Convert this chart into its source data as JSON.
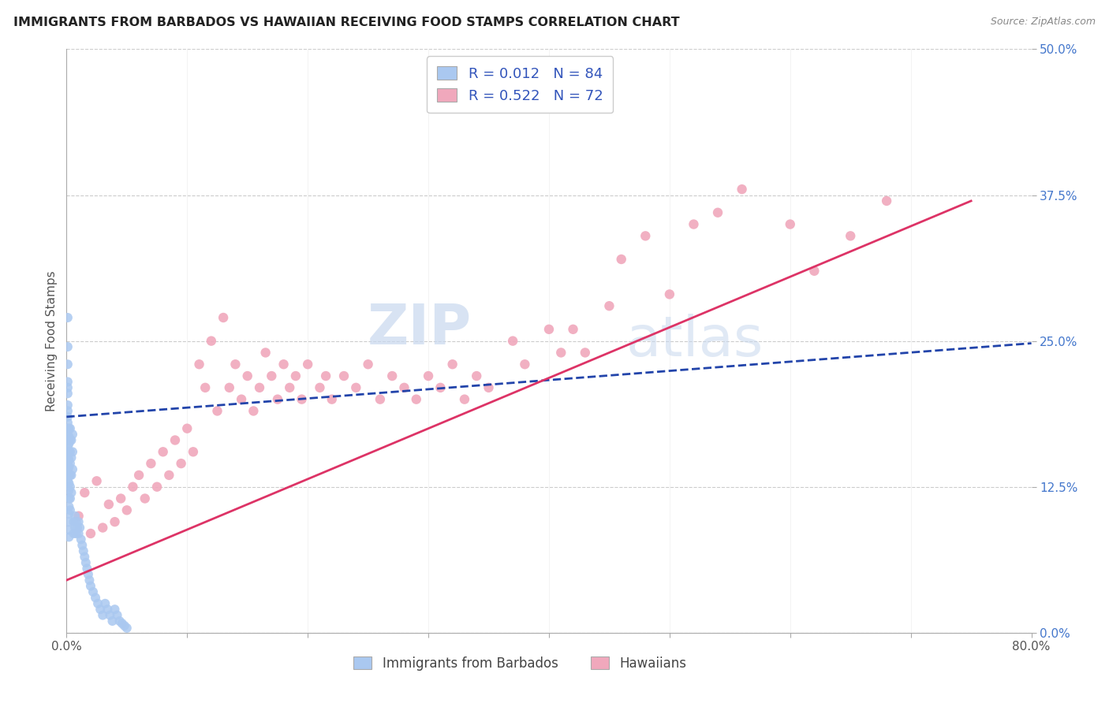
{
  "title": "IMMIGRANTS FROM BARBADOS VS HAWAIIAN RECEIVING FOOD STAMPS CORRELATION CHART",
  "source": "Source: ZipAtlas.com",
  "ylabel": "Receiving Food Stamps",
  "yticks_labels": [
    "0.0%",
    "12.5%",
    "25.0%",
    "37.5%",
    "50.0%"
  ],
  "ytick_vals": [
    0.0,
    0.125,
    0.25,
    0.375,
    0.5
  ],
  "xtick_vals": [
    0.0,
    0.1,
    0.2,
    0.3,
    0.4,
    0.5,
    0.6,
    0.7,
    0.8
  ],
  "xlim": [
    0.0,
    0.8
  ],
  "ylim": [
    0.0,
    0.5
  ],
  "legend1_R": "0.012",
  "legend1_N": "84",
  "legend2_R": "0.522",
  "legend2_N": "72",
  "blue_color": "#aac8f0",
  "pink_color": "#f0a8bc",
  "blue_line_color": "#2244aa",
  "pink_line_color": "#dd3366",
  "watermark_zip": "ZIP",
  "watermark_atlas": "atlas",
  "legend_label1": "Immigrants from Barbados",
  "legend_label2": "Hawaiians",
  "blue_scatter_x": [
    0.001,
    0.001,
    0.001,
    0.001,
    0.001,
    0.001,
    0.001,
    0.001,
    0.001,
    0.001,
    0.001,
    0.001,
    0.001,
    0.001,
    0.001,
    0.001,
    0.001,
    0.001,
    0.001,
    0.001,
    0.002,
    0.002,
    0.002,
    0.002,
    0.002,
    0.002,
    0.002,
    0.002,
    0.002,
    0.002,
    0.002,
    0.002,
    0.002,
    0.002,
    0.002,
    0.003,
    0.003,
    0.003,
    0.003,
    0.003,
    0.003,
    0.003,
    0.003,
    0.004,
    0.004,
    0.004,
    0.004,
    0.005,
    0.005,
    0.005,
    0.006,
    0.006,
    0.007,
    0.007,
    0.008,
    0.008,
    0.009,
    0.01,
    0.01,
    0.011,
    0.012,
    0.013,
    0.014,
    0.015,
    0.016,
    0.017,
    0.018,
    0.019,
    0.02,
    0.022,
    0.024,
    0.026,
    0.028,
    0.03,
    0.032,
    0.034,
    0.036,
    0.038,
    0.04,
    0.042,
    0.044,
    0.046,
    0.048,
    0.05
  ],
  "blue_scatter_y": [
    0.27,
    0.245,
    0.23,
    0.215,
    0.21,
    0.205,
    0.195,
    0.19,
    0.185,
    0.18,
    0.175,
    0.17,
    0.165,
    0.16,
    0.155,
    0.15,
    0.145,
    0.14,
    0.135,
    0.13,
    0.175,
    0.168,
    0.162,
    0.155,
    0.148,
    0.142,
    0.135,
    0.128,
    0.122,
    0.115,
    0.108,
    0.102,
    0.095,
    0.088,
    0.082,
    0.175,
    0.165,
    0.155,
    0.145,
    0.135,
    0.125,
    0.115,
    0.105,
    0.165,
    0.15,
    0.135,
    0.12,
    0.17,
    0.155,
    0.14,
    0.095,
    0.085,
    0.1,
    0.09,
    0.095,
    0.085,
    0.09,
    0.095,
    0.085,
    0.09,
    0.08,
    0.075,
    0.07,
    0.065,
    0.06,
    0.055,
    0.05,
    0.045,
    0.04,
    0.035,
    0.03,
    0.025,
    0.02,
    0.015,
    0.025,
    0.02,
    0.015,
    0.01,
    0.02,
    0.015,
    0.01,
    0.008,
    0.006,
    0.004
  ],
  "pink_scatter_x": [
    0.01,
    0.015,
    0.02,
    0.025,
    0.03,
    0.035,
    0.04,
    0.045,
    0.05,
    0.055,
    0.06,
    0.065,
    0.07,
    0.075,
    0.08,
    0.085,
    0.09,
    0.095,
    0.1,
    0.105,
    0.11,
    0.115,
    0.12,
    0.125,
    0.13,
    0.135,
    0.14,
    0.145,
    0.15,
    0.155,
    0.16,
    0.165,
    0.17,
    0.175,
    0.18,
    0.185,
    0.19,
    0.195,
    0.2,
    0.21,
    0.215,
    0.22,
    0.23,
    0.24,
    0.25,
    0.26,
    0.27,
    0.28,
    0.29,
    0.3,
    0.31,
    0.32,
    0.33,
    0.34,
    0.35,
    0.37,
    0.38,
    0.4,
    0.41,
    0.42,
    0.43,
    0.45,
    0.46,
    0.48,
    0.5,
    0.52,
    0.54,
    0.56,
    0.6,
    0.62,
    0.65,
    0.68
  ],
  "pink_scatter_y": [
    0.1,
    0.12,
    0.085,
    0.13,
    0.09,
    0.11,
    0.095,
    0.115,
    0.105,
    0.125,
    0.135,
    0.115,
    0.145,
    0.125,
    0.155,
    0.135,
    0.165,
    0.145,
    0.175,
    0.155,
    0.23,
    0.21,
    0.25,
    0.19,
    0.27,
    0.21,
    0.23,
    0.2,
    0.22,
    0.19,
    0.21,
    0.24,
    0.22,
    0.2,
    0.23,
    0.21,
    0.22,
    0.2,
    0.23,
    0.21,
    0.22,
    0.2,
    0.22,
    0.21,
    0.23,
    0.2,
    0.22,
    0.21,
    0.2,
    0.22,
    0.21,
    0.23,
    0.2,
    0.22,
    0.21,
    0.25,
    0.23,
    0.26,
    0.24,
    0.26,
    0.24,
    0.28,
    0.32,
    0.34,
    0.29,
    0.35,
    0.36,
    0.38,
    0.35,
    0.31,
    0.34,
    0.37
  ],
  "blue_trend_x": [
    0.0,
    0.8
  ],
  "blue_trend_y": [
    0.185,
    0.248
  ],
  "pink_trend_x": [
    0.0,
    0.75
  ],
  "pink_trend_y": [
    0.045,
    0.37
  ]
}
